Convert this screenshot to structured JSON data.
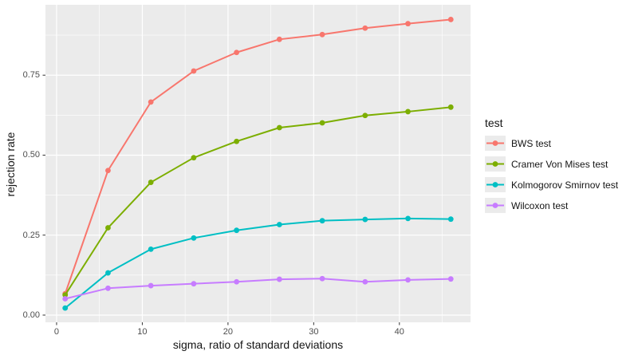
{
  "chart_data": {
    "type": "line",
    "x": [
      1,
      6,
      11,
      16,
      21,
      26,
      31,
      36,
      41,
      46
    ],
    "series": [
      {
        "name": "BWS test",
        "color": "#F8766D",
        "values": [
          0.067,
          0.452,
          0.666,
          0.763,
          0.821,
          0.862,
          0.877,
          0.897,
          0.911,
          0.924
        ]
      },
      {
        "name": "Cramer Von Mises test",
        "color": "#7CAE00",
        "values": [
          0.063,
          0.273,
          0.415,
          0.492,
          0.543,
          0.586,
          0.601,
          0.624,
          0.636,
          0.65
        ]
      },
      {
        "name": "Kolmogorov Smirnov test",
        "color": "#00BFC4",
        "values": [
          0.022,
          0.132,
          0.206,
          0.241,
          0.265,
          0.283,
          0.295,
          0.299,
          0.302,
          0.3
        ]
      },
      {
        "name": "Wilcoxon test",
        "color": "#C77CFF",
        "values": [
          0.051,
          0.084,
          0.092,
          0.098,
          0.104,
          0.112,
          0.114,
          0.104,
          0.11,
          0.113
        ]
      }
    ],
    "title": "",
    "xlabel": "sigma, ratio of standard deviations",
    "ylabel": "rejection rate",
    "legend_title": "test",
    "legend_position": "right",
    "xlim": [
      -1.3,
      48.3
    ],
    "ylim": [
      -0.0225,
      0.97
    ],
    "x_ticks": [
      0,
      10,
      20,
      30,
      40
    ],
    "x_tick_labels": [
      "0",
      "10",
      "20",
      "30",
      "40"
    ],
    "x_minor_ticks": [
      5,
      15,
      25,
      35,
      45
    ],
    "y_ticks": [
      0,
      0.25,
      0.5,
      0.75
    ],
    "y_tick_labels": [
      "0.00",
      "0.25",
      "0.50",
      "0.75"
    ],
    "y_minor_ticks": [
      0.125,
      0.375,
      0.625,
      0.875
    ],
    "grid": true,
    "marker": "circle",
    "panel_background": "#EBEBEB",
    "grid_color": "#FFFFFF",
    "tick_color": "#333333",
    "tick_label_color": "#4D4D4D"
  }
}
